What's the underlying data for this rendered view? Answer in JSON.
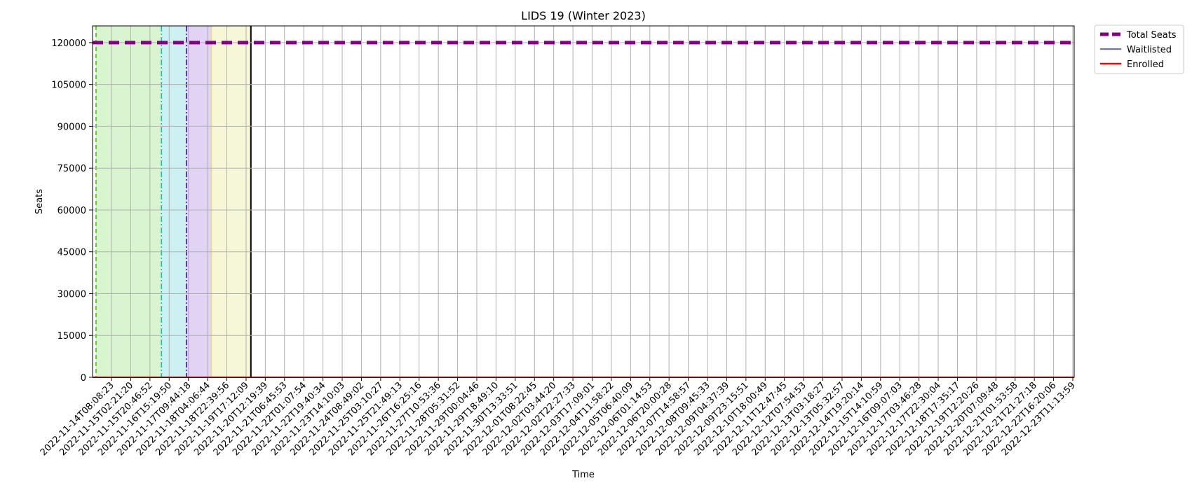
{
  "chart_data": {
    "type": "line",
    "title": "LIDS 19 (Winter 2023)",
    "xlabel": "Time",
    "ylabel": "Seats",
    "ylim": [
      0,
      126000
    ],
    "yticks": [
      0,
      15000,
      30000,
      45000,
      60000,
      75000,
      90000,
      105000,
      120000
    ],
    "grid": true,
    "legend_position": "outside top-right",
    "x": [
      "2022-11-14T08:08:23",
      "2022-11-15T02:21:20",
      "2022-11-15T20:46:52",
      "2022-11-16T15:19:50",
      "2022-11-17T09:44:18",
      "2022-11-18T04:06:44",
      "2022-11-18T22:39:56",
      "2022-11-19T17:12:09",
      "2022-11-20T12:19:39",
      "2022-11-21T06:45:53",
      "2022-11-22T01:07:54",
      "2022-11-22T19:40:34",
      "2022-11-23T14:10:03",
      "2022-11-24T08:49:02",
      "2022-11-25T03:10:27",
      "2022-11-25T21:49:13",
      "2022-11-26T16:25:16",
      "2022-11-27T10:53:36",
      "2022-11-28T05:31:52",
      "2022-11-29T00:04:46",
      "2022-11-29T18:49:10",
      "2022-11-30T13:33:51",
      "2022-12-01T08:22:45",
      "2022-12-02T03:44:20",
      "2022-12-02T22:27:33",
      "2022-12-03T17:09:01",
      "2022-12-04T11:58:22",
      "2022-12-05T06:40:09",
      "2022-12-06T01:14:53",
      "2022-12-06T20:00:28",
      "2022-12-07T14:58:57",
      "2022-12-08T09:45:33",
      "2022-12-09T04:37:39",
      "2022-12-09T23:15:51",
      "2022-12-10T18:00:49",
      "2022-12-11T12:47:45",
      "2022-12-12T07:54:53",
      "2022-12-13T03:18:27",
      "2022-12-13T05:32:57",
      "2022-12-14T19:20:14",
      "2022-12-15T14:10:59",
      "2022-12-16T09:07:03",
      "2022-12-17T03:46:28",
      "2022-12-17T22:30:04",
      "2022-12-18T17:35:17",
      "2022-12-19T12:20:26",
      "2022-12-20T07:09:48",
      "2022-12-21T01:53:58",
      "2022-12-21T21:27:18",
      "2022-12-22T16:20:06",
      "2022-12-23T11:13:59"
    ],
    "series": [
      {
        "name": "Total Seats",
        "value": 120000,
        "color": "#800080",
        "style": "dashed"
      },
      {
        "name": "Waitlisted",
        "value": 0,
        "color": "#3333ff",
        "style": "solid"
      },
      {
        "name": "Enrolled",
        "value": 0,
        "color": "#ff0000",
        "style": "solid"
      }
    ],
    "phases": [
      {
        "start_index": 0.18,
        "end_index": 2.6,
        "color": "#d9f5cf",
        "line_color": "#33cc00",
        "line_style": "dashed"
      },
      {
        "start_index": 2.6,
        "end_index": 3.9,
        "color": "#cdf1f3",
        "line_color": "#00bfbf",
        "line_style": "dashdot"
      },
      {
        "start_index": 3.9,
        "end_index": 5.2,
        "color": "#e0d3f4",
        "line_color": "#5500cc",
        "line_style": "dashdot"
      },
      {
        "start_index": 5.2,
        "end_index": 7.25,
        "color": "#f6f7d6",
        "line_color": "#e8e07a",
        "line_style": "solid"
      }
    ],
    "marker_line_index": 7.25
  }
}
